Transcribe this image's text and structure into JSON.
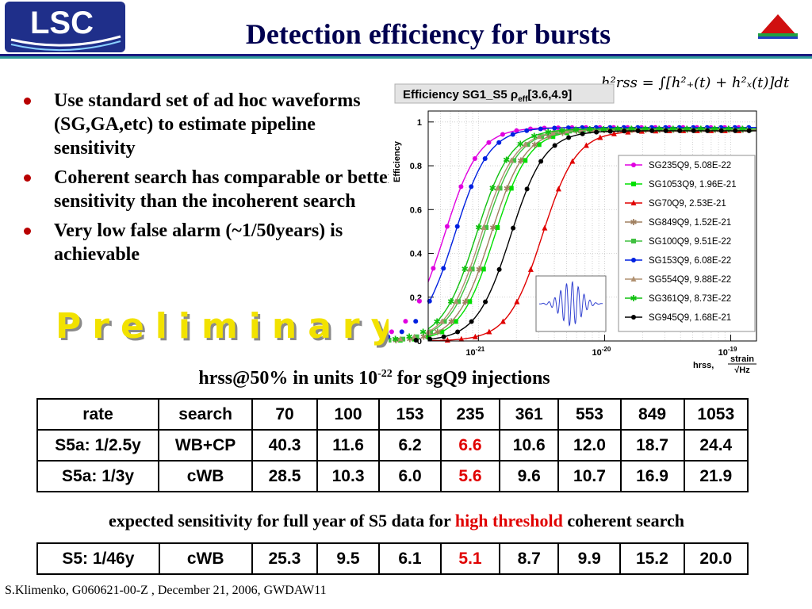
{
  "header": {
    "logo_text": "LSC",
    "title": "Detection efficiency for bursts"
  },
  "bullets": [
    "Use standard set of ad hoc waveforms (SG,GA,etc) to estimate pipeline sensitivity",
    "Coherent search has comparable or better sensitivity than the incoherent search",
    "Very low false alarm (~1/50years) is achievable"
  ],
  "watermark": "Preliminary",
  "caption": {
    "before": "hrss@50% in units 10",
    "exp": "-22",
    "after": " for sgQ9 injections"
  },
  "note": {
    "before": "expected sensitivity for full year of S5 data for ",
    "highlight": "high threshold",
    "after": " coherent search"
  },
  "colors": {
    "highlight": "#e00000",
    "title": "#000050",
    "watermark": "#f2e200"
  },
  "table_main": {
    "header": [
      "rate",
      "search",
      "70",
      "100",
      "153",
      "235",
      "361",
      "553",
      "849",
      "1053"
    ],
    "rows": [
      [
        "S5a: 1/2.5y",
        "WB+CP",
        "40.3",
        "11.6",
        "6.2",
        "6.6",
        "10.6",
        "12.0",
        "18.7",
        "24.4"
      ],
      [
        "S5a: 1/3y",
        "cWB",
        "28.5",
        "10.3",
        "6.0",
        "5.6",
        "9.6",
        "10.7",
        "16.9",
        "21.9"
      ]
    ],
    "highlight_col": 5
  },
  "table_s5": {
    "rows": [
      [
        "S5: 1/46y",
        "cWB",
        "25.3",
        "9.5",
        "6.1",
        "5.1",
        "8.7",
        "9.9",
        "15.2",
        "20.0"
      ]
    ],
    "highlight_col": 5
  },
  "footer": "S.Klimenko, G060621-00-Z , December 21, 2006,  GWDAW11",
  "chart_data": {
    "type": "scatter",
    "title": "Efficiency SG1_S5 ρeff[3.6,4.9]",
    "title_main": "Efficiency SG1_S5 ρ",
    "title_sub": "eff",
    "title_range": "[3.6,4.9]",
    "ylabel": "Efficiency",
    "xlabel": "hrss,",
    "xunit_num": "strain",
    "xunit_den": "√Hz",
    "xscale": "log",
    "xlim": [
      4e-22,
      1.6e-19
    ],
    "ylim": [
      0,
      1.05
    ],
    "yticks": [
      0,
      0.2,
      0.4,
      0.6,
      0.8,
      1
    ],
    "ytick_labels": [
      "0",
      "0.2",
      "0.4",
      "0.6",
      "0.8",
      "1"
    ],
    "xticks": [
      1e-21,
      1e-20,
      1e-19
    ],
    "xtick_labels": [
      {
        "base": "10",
        "exp": "-21"
      },
      {
        "base": "10",
        "exp": "-20"
      },
      {
        "base": "10",
        "exp": "-19"
      }
    ],
    "formula": "h²rss = ∫[h²₊(t) + h²ₓ(t)]dt",
    "legend_position": "right",
    "series": [
      {
        "name": "SG235Q9, 5.08E-22",
        "color": "#e000e0",
        "marker": "circle",
        "h50": 5.4e-22,
        "plateau": 0.975
      },
      {
        "name": "SG1053Q9, 1.96E-21",
        "color": "#00e000",
        "marker": "square",
        "h50": 1.35e-21,
        "plateau": 0.965
      },
      {
        "name": "SG70Q9, 2.53E-21",
        "color": "#e00000",
        "marker": "triangle",
        "h50": 3.2e-21,
        "plateau": 0.96
      },
      {
        "name": "SG849Q9, 1.52E-21",
        "color": "#a08060",
        "marker": "star",
        "h50": 1.25e-21,
        "plateau": 0.965
      },
      {
        "name": "SG100Q9, 9.51E-22",
        "color": "#40c040",
        "marker": "square",
        "h50": 1.1e-21,
        "plateau": 0.965
      },
      {
        "name": "SG153Q9, 6.08E-22",
        "color": "#0020e0",
        "marker": "circle",
        "h50": 6.5e-22,
        "plateau": 0.975
      },
      {
        "name": "SG554Q9, 9.88E-22",
        "color": "#b09070",
        "marker": "triangle",
        "h50": 1.05e-21,
        "plateau": 0.965
      },
      {
        "name": "SG361Q9, 8.73E-22",
        "color": "#10c010",
        "marker": "star",
        "h50": 9.6e-22,
        "plateau": 0.968
      },
      {
        "name": "SG945Q9, 1.68E-21",
        "color": "#000000",
        "marker": "circle",
        "h50": 1.8e-21,
        "plateau": 0.96
      }
    ]
  }
}
